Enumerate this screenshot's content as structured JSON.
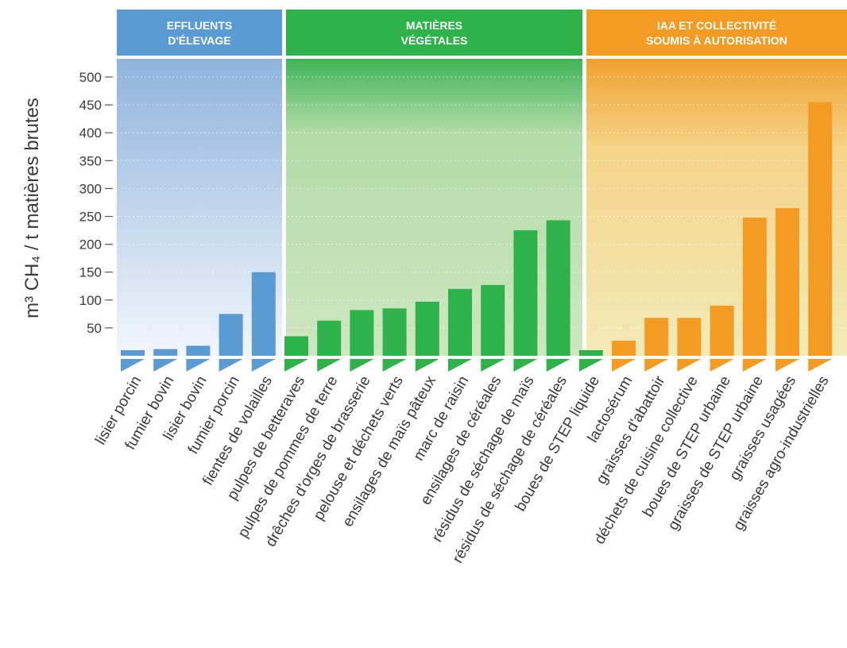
{
  "chart_data": {
    "type": "bar",
    "ylabel": "m³ CH₄ / t matières brutes",
    "yticks": [
      50,
      100,
      150,
      200,
      250,
      300,
      350,
      400,
      450,
      500
    ],
    "ylim": [
      0,
      530
    ],
    "groups": [
      {
        "name": [
          "EFFLUENTS",
          "D'ÉLEVAGE"
        ],
        "color": "#5b9bd5",
        "categories": [
          "lisier porcin",
          "fumier bovin",
          "lisier bovin",
          "fumier porcin",
          "fientes de volailles"
        ],
        "values": [
          10,
          12,
          18,
          75,
          150
        ]
      },
      {
        "name": [
          "MATIÈRES",
          "VÉGÉTALES"
        ],
        "color": "#2db34a",
        "categories": [
          "pulpes de betteraves",
          "pulpes de pommes de terre",
          "drêches d'orges de brasserie",
          "pelouse et déchets verts",
          "ensilages de maïs pâteux",
          "marc de raisin",
          "ensilages de céréales",
          "résidus de séchage de maïs",
          "résidus de séchage de céréales",
          "boues de STEP liquide"
        ],
        "values": [
          35,
          63,
          82,
          85,
          97,
          120,
          127,
          225,
          243,
          10
        ]
      },
      {
        "name": [
          "IAA ET COLLECTIVITÉ",
          "SOUMIS À AUTORISATION"
        ],
        "color": "#f39b22",
        "categories": [
          "lactosérum",
          "graisses d'abattoir",
          "déchets de cuisine collective",
          "boues de STEP urbaine",
          "graisses de STEP urbaine",
          "graisses usagées",
          "graisses agro-industrielles"
        ],
        "values": [
          27,
          68,
          68,
          90,
          248,
          265,
          455
        ]
      }
    ]
  }
}
